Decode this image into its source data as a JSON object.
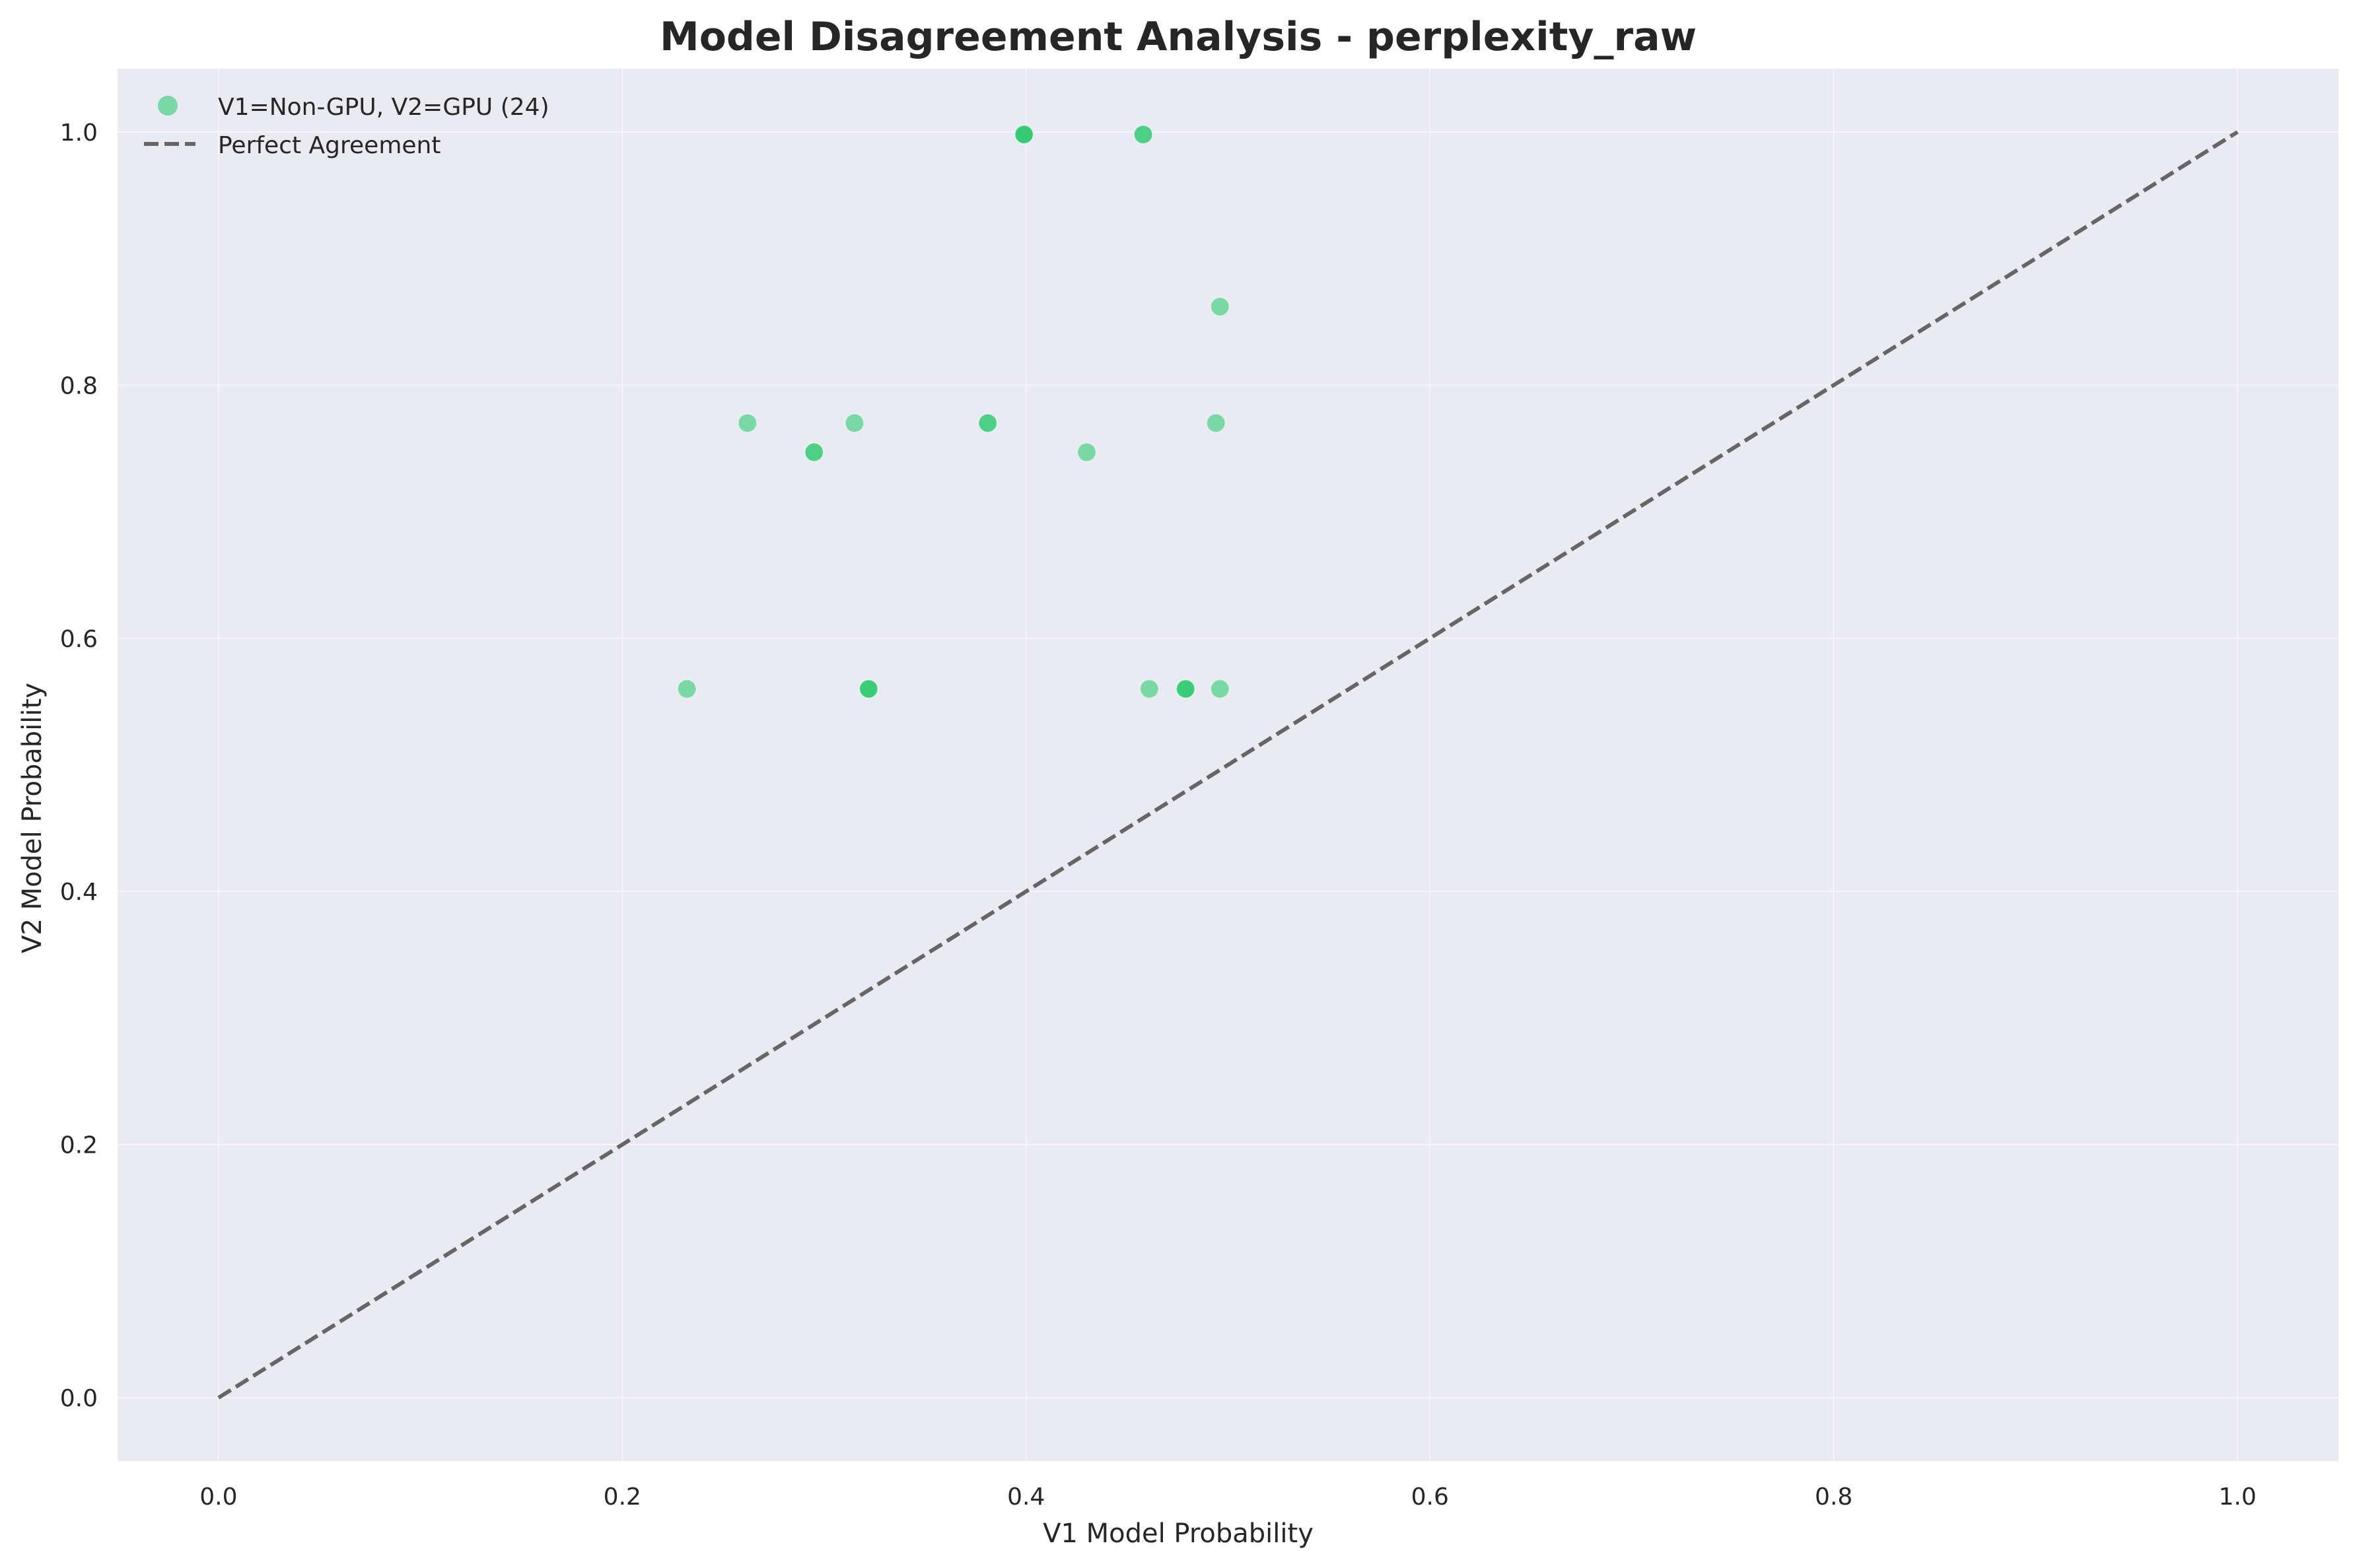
{
  "chart_data": {
    "type": "scatter",
    "title": "Model Disagreement Analysis - perplexity_raw",
    "xlabel": "V1 Model Probability",
    "ylabel": "V2 Model Probability",
    "xlim": [
      -0.05,
      1.05
    ],
    "ylim": [
      -0.05,
      1.05
    ],
    "x_ticks": [
      0.0,
      0.2,
      0.4,
      0.6,
      0.8,
      1.0
    ],
    "y_ticks": [
      0.0,
      0.2,
      0.4,
      0.6,
      0.8,
      1.0
    ],
    "x_tick_labels": [
      "0.0",
      "0.2",
      "0.4",
      "0.6",
      "0.8",
      "1.0"
    ],
    "y_tick_labels": [
      "0.0",
      "0.2",
      "0.4",
      "0.6",
      "0.8",
      "1.0"
    ],
    "grid": true,
    "legend_position": "top-left",
    "background_color": "#eaeaf2",
    "series": [
      {
        "name": "V1=Non-GPU, V2=GPU (24)",
        "color": "#2ecc71",
        "opacity": 0.6,
        "points": [
          {
            "x": 0.232,
            "y": 0.56
          },
          {
            "x": 0.262,
            "y": 0.77
          },
          {
            "x": 0.295,
            "y": 0.747
          },
          {
            "x": 0.295,
            "y": 0.747
          },
          {
            "x": 0.315,
            "y": 0.77
          },
          {
            "x": 0.322,
            "y": 0.56
          },
          {
            "x": 0.322,
            "y": 0.56
          },
          {
            "x": 0.322,
            "y": 0.56
          },
          {
            "x": 0.381,
            "y": 0.77
          },
          {
            "x": 0.381,
            "y": 0.77
          },
          {
            "x": 0.399,
            "y": 0.998
          },
          {
            "x": 0.399,
            "y": 0.998
          },
          {
            "x": 0.399,
            "y": 0.998
          },
          {
            "x": 0.43,
            "y": 0.747
          },
          {
            "x": 0.458,
            "y": 0.998
          },
          {
            "x": 0.458,
            "y": 0.998
          },
          {
            "x": 0.461,
            "y": 0.56
          },
          {
            "x": 0.479,
            "y": 0.56
          },
          {
            "x": 0.479,
            "y": 0.56
          },
          {
            "x": 0.479,
            "y": 0.56
          },
          {
            "x": 0.494,
            "y": 0.77
          },
          {
            "x": 0.496,
            "y": 0.862
          },
          {
            "x": 0.496,
            "y": 0.56
          },
          {
            "x": 0.399,
            "y": 0.998
          }
        ]
      }
    ],
    "reference_line": {
      "name": "Perfect Agreement",
      "x": [
        0.0,
        1.0
      ],
      "y": [
        0.0,
        1.0
      ],
      "color": "#666666",
      "style": "dashed"
    }
  }
}
